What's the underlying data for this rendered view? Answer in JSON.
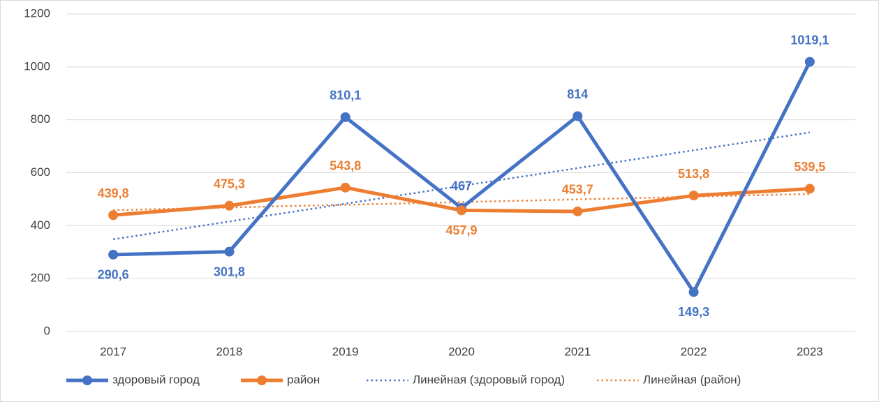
{
  "chart_data": {
    "type": "line",
    "categories": [
      "2017",
      "2018",
      "2019",
      "2020",
      "2021",
      "2022",
      "2023"
    ],
    "series": [
      {
        "name": "здоровый город",
        "color": "#4472c4",
        "values": [
          290.6,
          301.8,
          810.1,
          467,
          814,
          149.3,
          1019.1
        ],
        "value_labels": [
          "290,6",
          "301,8",
          "810,1",
          "467",
          "814",
          "149,3",
          "1019,1"
        ]
      },
      {
        "name": "район",
        "color": "#ed7d31",
        "values": [
          439.8,
          475.3,
          543.8,
          457.9,
          453.7,
          513.8,
          539.5
        ],
        "value_labels": [
          "439,8",
          "475,3",
          "543,8",
          "457,9",
          "453,7",
          "513,8",
          "539,5"
        ]
      },
      {
        "name": "Линейная (здоровый город)",
        "color": "#4472c4",
        "dashed": true,
        "values": [
          348.4,
          415.7,
          483.0,
          550.3,
          617.6,
          684.9,
          752.2
        ]
      },
      {
        "name": "Линейная (район)",
        "color": "#ed7d31",
        "dashed": true,
        "values": [
          458.5,
          468.7,
          478.9,
          489.1,
          499.3,
          509.5,
          519.7
        ]
      }
    ],
    "ylim": [
      0,
      1200
    ],
    "yticks": [
      0,
      200,
      400,
      600,
      800,
      1000,
      1200
    ],
    "grid": true,
    "legend": "bottom"
  }
}
